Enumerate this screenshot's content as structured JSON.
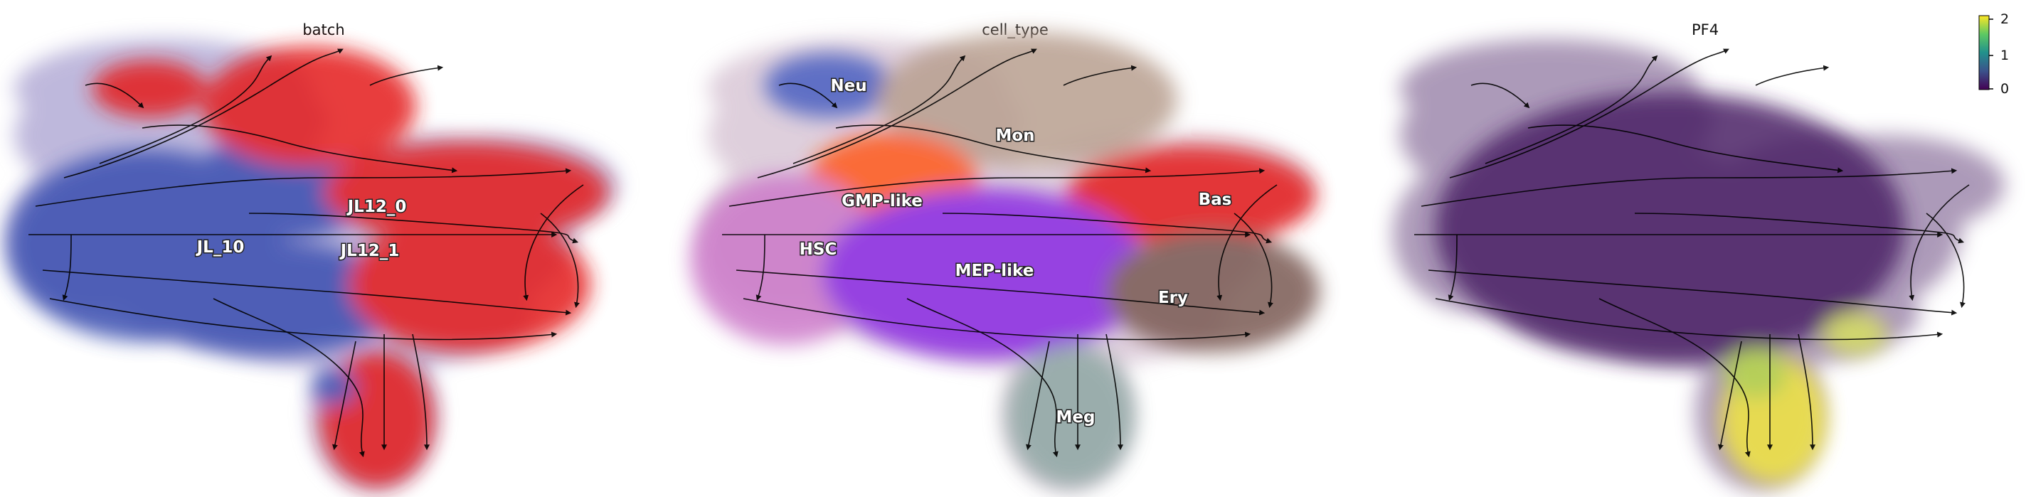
{
  "chart_data": [
    {
      "type": "scatter",
      "subtype": "umap-embedding-with-velocity-streamlines",
      "title": "batch",
      "color_by": "batch",
      "categories": [
        {
          "name": "JL_10",
          "color": "#3b4fb0"
        },
        {
          "name": "JL12_0",
          "color": "#e41a1c"
        },
        {
          "name": "JL12_1",
          "color": "#e41a1c"
        }
      ],
      "axes": "off",
      "legend": "on-data"
    },
    {
      "type": "scatter",
      "subtype": "umap-embedding-with-velocity-streamlines",
      "title": "cell_type",
      "color_by": "cell_type",
      "categories": [
        {
          "name": "Neu",
          "color": "#4a5fc1"
        },
        {
          "name": "Mon",
          "color": "#b89f8f"
        },
        {
          "name": "GMP-like",
          "color": "#ff5a1f"
        },
        {
          "name": "Bas",
          "color": "#e41a1c"
        },
        {
          "name": "HSC",
          "color": "#cc79c9"
        },
        {
          "name": "MEP-like",
          "color": "#8a2be2"
        },
        {
          "name": "Ery",
          "color": "#7a5a52"
        },
        {
          "name": "Meg",
          "color": "#8fa8a4"
        }
      ],
      "axes": "off",
      "legend": "on-data"
    },
    {
      "type": "scatter",
      "subtype": "umap-embedding-with-velocity-streamlines",
      "title": "PF4",
      "color_by": "PF4 expression",
      "colormap": "viridis",
      "colorbar": {
        "range": [
          0,
          2
        ],
        "ticks": [
          "0",
          "1",
          "2"
        ],
        "placement": "top-right"
      },
      "axes": "off"
    }
  ],
  "colors": {
    "blue": "#3b4fb0",
    "red": "#e41a1c",
    "purple_bg": "#4b2466",
    "yellow": "#f2e640",
    "arrow": "#000000"
  }
}
